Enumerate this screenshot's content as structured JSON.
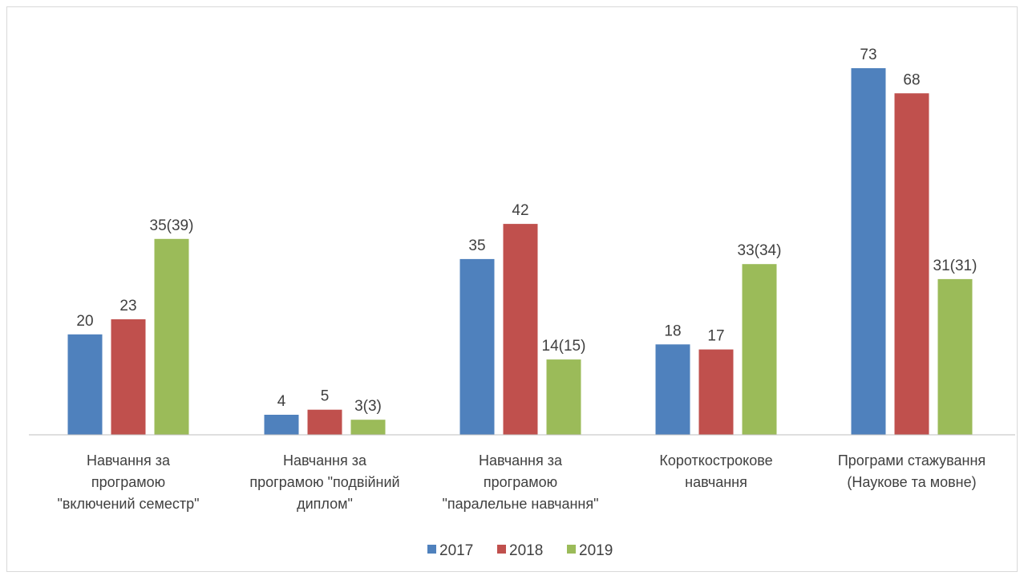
{
  "chart_data": {
    "type": "bar",
    "title": "",
    "xlabel": "",
    "ylabel": "",
    "ylim": [
      0,
      80
    ],
    "grid": false,
    "legend_position": "bottom",
    "categories": [
      [
        "Навчання за",
        "програмою",
        "\"включений семестр\""
      ],
      [
        "Навчання за",
        "програмою \"подвійний",
        "диплом\""
      ],
      [
        "Навчання за",
        "програмою",
        "\"паралельне навчання\""
      ],
      [
        "Короткострокове",
        "навчання"
      ],
      [
        "Програми стажування",
        "(Наукове та мовне)"
      ]
    ],
    "series": [
      {
        "name": "2017",
        "color": "#4f81bd",
        "values": [
          20,
          4,
          35,
          18,
          73
        ],
        "labels": [
          "20",
          "4",
          "35",
          "18",
          "73"
        ]
      },
      {
        "name": "2018",
        "color": "#c0504d",
        "values": [
          23,
          5,
          42,
          17,
          68
        ],
        "labels": [
          "23",
          "5",
          "42",
          "17",
          "68"
        ]
      },
      {
        "name": "2019",
        "color": "#9bbb59",
        "values": [
          39,
          3,
          15,
          34,
          31
        ],
        "labels": [
          "35(39)",
          "3(3)",
          "14(15)",
          "33(34)",
          "31(31)"
        ]
      }
    ]
  }
}
